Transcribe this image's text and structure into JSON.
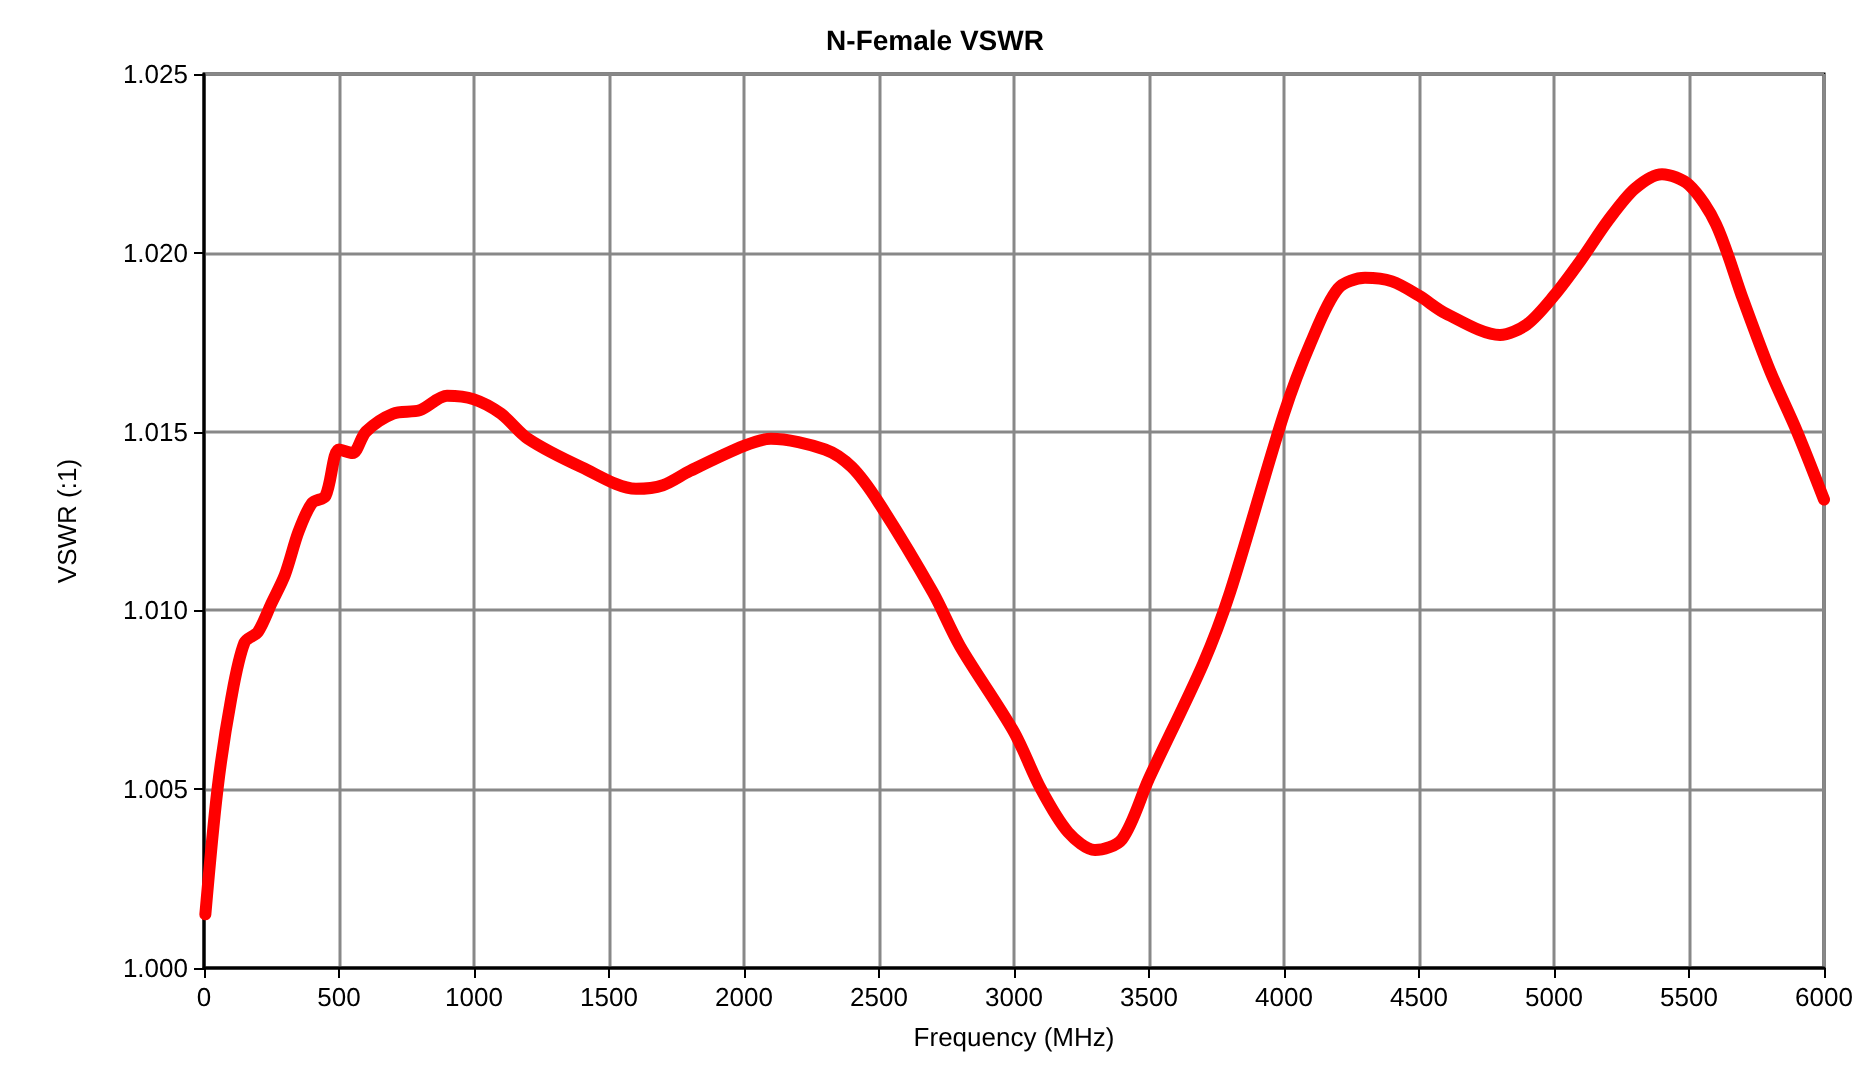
{
  "chart_data": {
    "type": "line",
    "title": "N-Female VSWR",
    "xlabel": "Frequency (MHz)",
    "ylabel": "VSWR (:1)",
    "xlim": [
      0,
      6000
    ],
    "xticks": [
      0,
      500,
      1000,
      1500,
      2000,
      2500,
      3000,
      3500,
      4000,
      4500,
      5000,
      5500,
      6000
    ],
    "ylim": [
      1.0,
      1.025
    ],
    "yticks": [
      {
        "value": 1.0,
        "label": "1.000"
      },
      {
        "value": 1.005,
        "label": "1.005"
      },
      {
        "value": 1.01,
        "label": "1.010"
      },
      {
        "value": 1.015,
        "label": "1.015"
      },
      {
        "value": 1.02,
        "label": "1.020"
      },
      {
        "value": 1.025,
        "label": "1.025"
      }
    ],
    "grid": true,
    "marker": "none",
    "line_style": "solid",
    "series": [
      {
        "color": "#ff0000",
        "x": [
          5,
          50,
          100,
          150,
          200,
          250,
          300,
          350,
          400,
          450,
          500,
          550,
          600,
          700,
          800,
          900,
          1000,
          1100,
          1200,
          1400,
          1600,
          1700,
          1800,
          2000,
          2100,
          2300,
          2400,
          2500,
          2700,
          2800,
          3000,
          3100,
          3200,
          3300,
          3400,
          3500,
          3700,
          3800,
          4000,
          4100,
          4200,
          4300,
          4400,
          4500,
          4600,
          4800,
          4900,
          5000,
          5100,
          5200,
          5300,
          5400,
          5500,
          5600,
          5700,
          5800,
          5900,
          6000
        ],
        "values": [
          1.0015,
          1.005,
          1.0075,
          1.0091,
          1.0094,
          1.0102,
          1.011,
          1.0122,
          1.013,
          1.0132,
          1.0145,
          1.0144,
          1.015,
          1.0155,
          1.0156,
          1.016,
          1.0159,
          1.0155,
          1.0148,
          1.014,
          1.0134,
          1.0135,
          1.0139,
          1.0146,
          1.0148,
          1.0145,
          1.014,
          1.013,
          1.0105,
          1.009,
          1.0066,
          1.005,
          1.0038,
          1.0033,
          1.0036,
          1.0053,
          1.0085,
          1.0105,
          1.0155,
          1.0175,
          1.019,
          1.0193,
          1.0192,
          1.0188,
          1.0183,
          1.0177,
          1.018,
          1.0188,
          1.0198,
          1.0209,
          1.0218,
          1.0222,
          1.0219,
          1.0208,
          1.0187,
          1.0167,
          1.015,
          1.0131
        ]
      }
    ]
  }
}
